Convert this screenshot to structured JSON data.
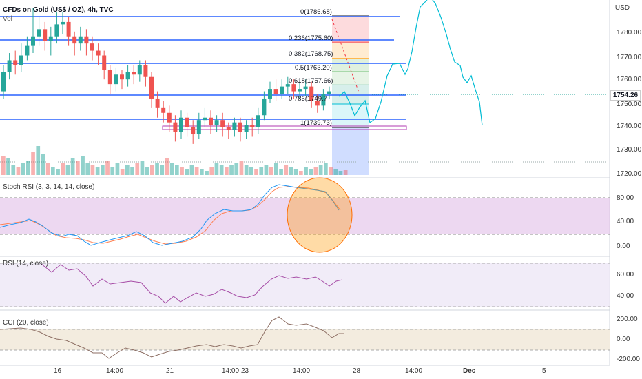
{
  "header": {
    "title": "CFDs on Gold (US$ / OZ), 4h, TVC",
    "volume_label": "Vol",
    "currency": "USD"
  },
  "price_axis": {
    "ticks": [
      "1780.00",
      "1770.00",
      "1760.00",
      "1750.00",
      "1740.00",
      "1730.00",
      "1720.00"
    ],
    "last_price": "1754.26"
  },
  "fibonacci": {
    "levels": [
      {
        "label": "0(1786.68)",
        "color": "#787b86"
      },
      {
        "label": "0.236(1775.60)",
        "color": "#f23645"
      },
      {
        "label": "0.382(1768.75)",
        "color": "#ff9800"
      },
      {
        "label": "0.5(1763.20)",
        "color": "#4caf50"
      },
      {
        "label": "0.618(1757.66)",
        "color": "#089981"
      },
      {
        "label": "0.786(1749.7",
        "color": "#00bcd4"
      },
      {
        "label": "1(1739.73)",
        "color": "#787b86"
      }
    ]
  },
  "stoch_rsi": {
    "title": "Stoch RSI (3, 3, 14, 14, close)",
    "ticks": [
      "80.00",
      "40.00",
      "0.00"
    ]
  },
  "rsi": {
    "title": "RSI (14, close)",
    "ticks": [
      "60.00",
      "40.00"
    ]
  },
  "cci": {
    "title": "CCI (20, close)",
    "ticks": [
      "200.00",
      "0.00",
      "-200.00"
    ]
  },
  "time_axis": {
    "labels": [
      "16",
      "14:00",
      "21",
      "14:00",
      "23",
      "14:00",
      "28",
      "14:00",
      "Dec",
      "5"
    ]
  },
  "colors": {
    "up": "#26a69a",
    "down": "#ef5350",
    "hline": "#2962ff",
    "stoch_band": "#e1bee7",
    "rsi_band": "#ede7f6",
    "cci_band": "#f3ecdf",
    "projection": "#00bcd4"
  }
}
